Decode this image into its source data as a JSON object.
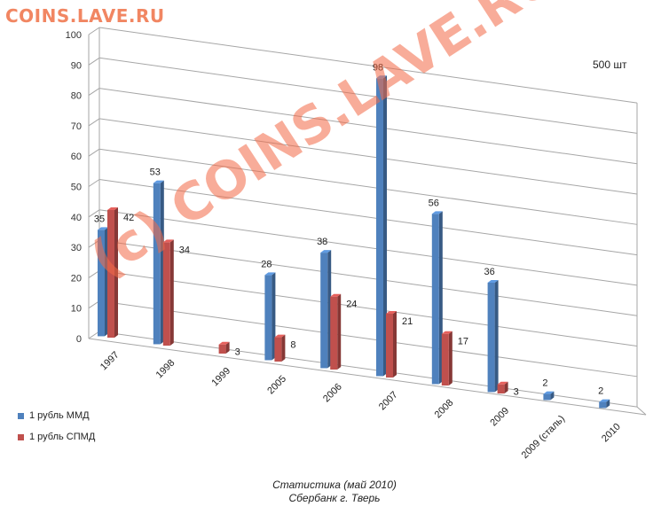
{
  "watermark": {
    "top": "COINS.LAVE.RU",
    "diagonal": "(c) COINS.LAVE.RU"
  },
  "unit_label": "500 шт",
  "caption": {
    "line1": "Статистика (май 2010)",
    "line2": "Сбербанк г. Тверь"
  },
  "chart_data": {
    "type": "bar",
    "categories": [
      "1997",
      "1998",
      "1999",
      "2005",
      "2006",
      "2007",
      "2008",
      "2009",
      "2009 (сталь)",
      "2010"
    ],
    "series": [
      {
        "name": "1 рубль ММД",
        "color": "#4f81bd",
        "values": [
          35,
          53,
          null,
          28,
          38,
          98,
          56,
          36,
          2,
          2
        ]
      },
      {
        "name": "1 рубль СПМД",
        "color": "#c0504d",
        "values": [
          42,
          34,
          3,
          8,
          24,
          21,
          17,
          3,
          null,
          null
        ]
      }
    ],
    "yticks": [
      "0",
      "10",
      "20",
      "30",
      "40",
      "50",
      "60",
      "70",
      "80",
      "90",
      "100"
    ],
    "ylim": [
      0,
      100
    ],
    "grid": true,
    "legend_position": "left",
    "three_d": true
  }
}
